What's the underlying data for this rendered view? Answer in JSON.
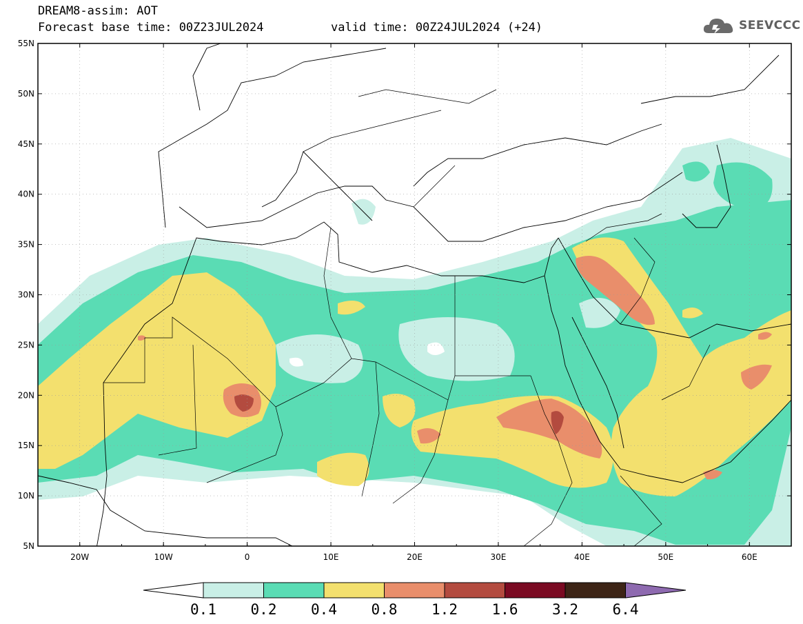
{
  "header": {
    "title": "DREAM8-assim: AOT",
    "base_time": "Forecast base time: 00Z23JUL2024",
    "valid_time": "valid time: 00Z24JUL2024 (+24)",
    "logo_text": "SEEVCCC"
  },
  "map": {
    "lat_labels": [
      "55N",
      "50N",
      "45N",
      "40N",
      "35N",
      "30N",
      "25N",
      "20N",
      "15N",
      "10N",
      "5N"
    ],
    "lon_labels": [
      "20W",
      "10W",
      "0",
      "10E",
      "20E",
      "30E",
      "40E",
      "50E",
      "60E"
    ],
    "lon_range": [
      -25,
      65
    ],
    "lat_range": [
      5,
      55
    ],
    "grid": "dotted"
  },
  "colorbar": {
    "labels": [
      "0.1",
      "0.2",
      "0.4",
      "0.8",
      "1.2",
      "1.6",
      "3.2",
      "6.4"
    ],
    "colors": [
      "#ffffff",
      "#c9efe6",
      "#5adcb4",
      "#f3e06e",
      "#e98e6b",
      "#b34b3f",
      "#7a0a22",
      "#3d2416",
      "#8e6ab0"
    ]
  }
}
